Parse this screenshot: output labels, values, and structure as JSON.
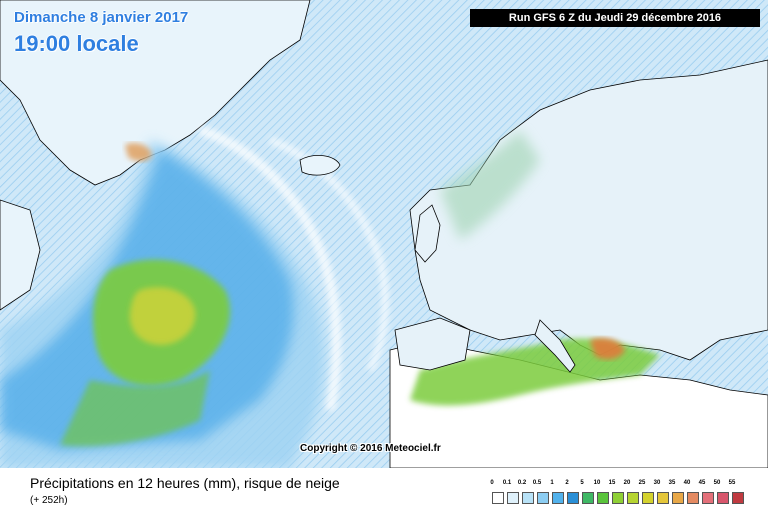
{
  "header": {
    "date": "Dimanche 8 janvier 2017",
    "time": "19:00 locale",
    "run": "Run GFS 6 Z du Jeudi 29 décembre 2016"
  },
  "map": {
    "copyright": "Copyright © 2016 Meteociel.fr",
    "colors": {
      "ocean_base": "#d7ecfa",
      "light_precip": "#9fd3f3",
      "moderate_precip": "#4aa8e8",
      "heavy_precip": "#7ccc3c",
      "very_heavy_precip": "#c9d23a",
      "extreme_precip": "#e07a3a",
      "coastline": "#000000"
    }
  },
  "footer": {
    "title": "Précipitations en 12 heures (mm), risque de neige",
    "subtitle": "(+ 252h)"
  },
  "legend": {
    "ticks": [
      "0",
      "0.1",
      "0.2",
      "0.5",
      "1",
      "2",
      "5",
      "10",
      "15",
      "20",
      "25",
      "30",
      "35",
      "40",
      "45",
      "50",
      "55"
    ],
    "colors": [
      "#ffffff",
      "#dff1fb",
      "#b8e2f7",
      "#8ccdf2",
      "#52b2ec",
      "#2a8fd6",
      "#3fb865",
      "#5ac43c",
      "#8fd036",
      "#b6d432",
      "#d4d22e",
      "#e4c63a",
      "#e8a848",
      "#e48a62",
      "#e4707a",
      "#d8566c",
      "#c03a40"
    ]
  }
}
